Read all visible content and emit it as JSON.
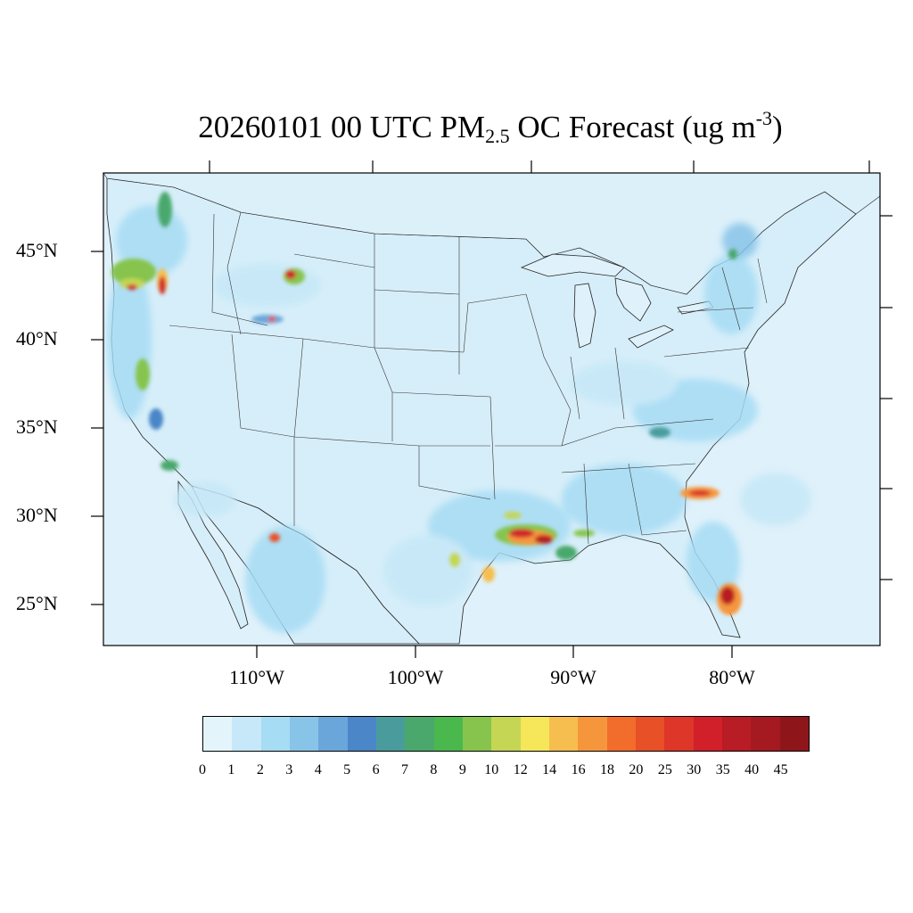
{
  "title": {
    "prefix": "20260101 00 UTC PM",
    "subscript": "2.5",
    "middle": " OC Forecast (ug m",
    "superscript": "-3",
    "suffix": ")"
  },
  "map": {
    "ocean_color": "#dff1fa",
    "land_base_color": "#d6eef9",
    "region": "CONUS",
    "lat_labels": [
      "45°N",
      "40°N",
      "35°N",
      "30°N",
      "25°N"
    ],
    "lon_labels": [
      "110°W",
      "100°W",
      "90°W",
      "80°W"
    ]
  },
  "colorbar": {
    "levels": [
      "0",
      "1",
      "2",
      "3",
      "4",
      "5",
      "6",
      "7",
      "8",
      "9",
      "10",
      "12",
      "14",
      "16",
      "18",
      "20",
      "25",
      "30",
      "35",
      "40",
      "45"
    ],
    "colors": [
      "#e4f4fb",
      "#c6e8f8",
      "#a6dcf4",
      "#88c4e8",
      "#6aa6da",
      "#4a86c8",
      "#4a9c9c",
      "#4aa86c",
      "#4ab84c",
      "#86c44e",
      "#c4d654",
      "#f6e65a",
      "#f6be4e",
      "#f6963c",
      "#f26c2c",
      "#e85028",
      "#de3628",
      "#d2202a",
      "#b81c24",
      "#a41a20",
      "#8e161a"
    ]
  }
}
